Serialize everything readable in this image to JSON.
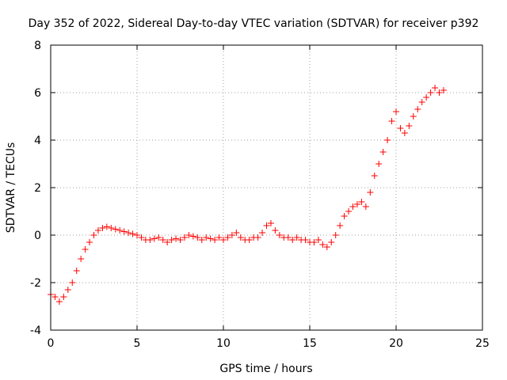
{
  "chart_data": {
    "type": "scatter",
    "title": "Day 352 of 2022, Sidereal Day-to-day VTEC variation (SDTVAR) for receiver p392",
    "xlabel": "GPS time / hours",
    "ylabel": "SDTVAR / TECUs",
    "xlim": [
      0,
      25
    ],
    "ylim": [
      -4,
      8
    ],
    "xticks": [
      0,
      5,
      10,
      15,
      20,
      25
    ],
    "yticks": [
      -4,
      -2,
      0,
      2,
      4,
      6,
      8
    ],
    "grid": true,
    "marker": "+",
    "series": [
      {
        "name": "SDTVAR",
        "color": "#ff0000",
        "x": [
          0.0,
          0.25,
          0.5,
          0.75,
          1.0,
          1.25,
          1.5,
          1.75,
          2.0,
          2.25,
          2.5,
          2.75,
          3.0,
          3.25,
          3.5,
          3.75,
          4.0,
          4.25,
          4.5,
          4.75,
          5.0,
          5.25,
          5.5,
          5.75,
          6.0,
          6.25,
          6.5,
          6.75,
          7.0,
          7.25,
          7.5,
          7.75,
          8.0,
          8.25,
          8.5,
          8.75,
          9.0,
          9.25,
          9.5,
          9.75,
          10.0,
          10.25,
          10.5,
          10.75,
          11.0,
          11.25,
          11.5,
          11.75,
          12.0,
          12.25,
          12.5,
          12.75,
          13.0,
          13.25,
          13.5,
          13.75,
          14.0,
          14.25,
          14.5,
          14.75,
          15.0,
          15.25,
          15.5,
          15.75,
          16.0,
          16.25,
          16.5,
          16.75,
          17.0,
          17.25,
          17.5,
          17.75,
          18.0,
          18.25,
          18.5,
          18.75,
          19.0,
          19.25,
          19.5,
          19.75,
          20.0,
          20.25,
          20.5,
          20.75,
          21.0,
          21.25,
          21.5,
          21.75,
          22.0,
          22.25,
          22.5,
          22.75
        ],
        "y": [
          -2.5,
          -2.6,
          -2.8,
          -2.6,
          -2.3,
          -2.0,
          -1.5,
          -1.0,
          -0.6,
          -0.3,
          0.0,
          0.2,
          0.3,
          0.35,
          0.3,
          0.25,
          0.2,
          0.15,
          0.1,
          0.05,
          0.0,
          -0.1,
          -0.2,
          -0.2,
          -0.15,
          -0.1,
          -0.2,
          -0.3,
          -0.2,
          -0.15,
          -0.2,
          -0.1,
          0.0,
          -0.05,
          -0.1,
          -0.2,
          -0.1,
          -0.15,
          -0.2,
          -0.1,
          -0.2,
          -0.1,
          0.0,
          0.1,
          -0.1,
          -0.2,
          -0.2,
          -0.1,
          -0.1,
          0.1,
          0.4,
          0.5,
          0.2,
          0.0,
          -0.1,
          -0.1,
          -0.2,
          -0.1,
          -0.2,
          -0.2,
          -0.3,
          -0.3,
          -0.2,
          -0.4,
          -0.5,
          -0.3,
          0.0,
          0.4,
          0.8,
          1.0,
          1.2,
          1.3,
          1.4,
          1.2,
          1.8,
          2.5,
          3.0,
          3.5,
          4.0,
          4.8,
          5.2,
          4.5,
          4.3,
          4.6,
          5.0,
          5.3,
          5.6,
          5.8,
          6.0,
          6.2,
          6.0,
          6.1
        ]
      }
    ]
  }
}
